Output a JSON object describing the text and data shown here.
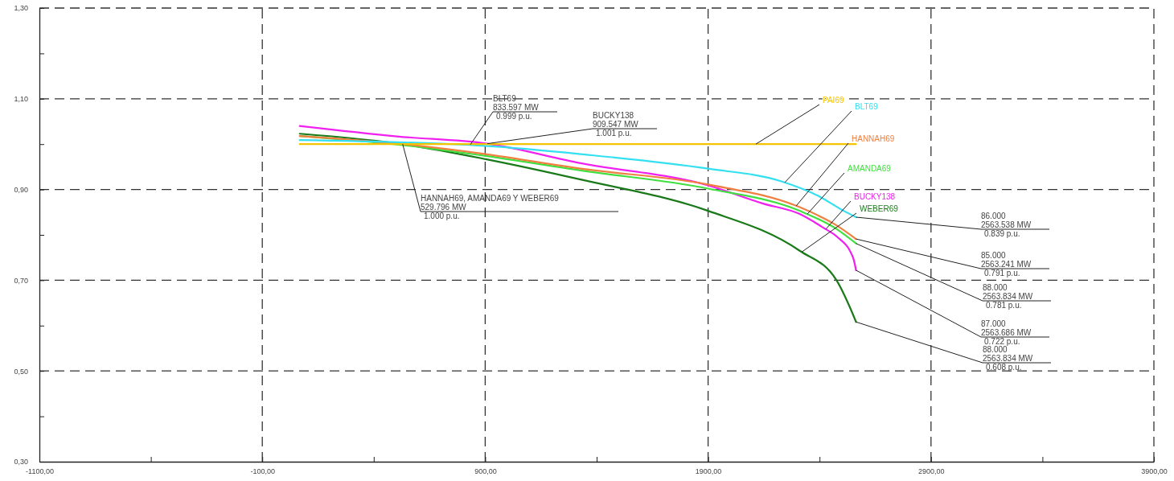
{
  "chart_data": {
    "type": "line",
    "xlim": [
      -1100,
      3900
    ],
    "ylim": [
      0.3,
      1.3
    ],
    "xticks": [
      {
        "value": -1100,
        "label": "-1100,00"
      },
      {
        "value": -600,
        "label": null
      },
      {
        "value": -100,
        "label": "-100,00"
      },
      {
        "value": 400,
        "label": null
      },
      {
        "value": 900,
        "label": "900,00"
      },
      {
        "value": 1400,
        "label": null
      },
      {
        "value": 1900,
        "label": "1900,00"
      },
      {
        "value": 2400,
        "label": null
      },
      {
        "value": 2900,
        "label": "2900,00"
      },
      {
        "value": 3400,
        "label": null
      },
      {
        "value": 3900,
        "label": "3900,00"
      }
    ],
    "yticks": [
      {
        "value": 0.3,
        "label": "0,30"
      },
      {
        "value": 0.4,
        "label": null
      },
      {
        "value": 0.5,
        "label": "0,50"
      },
      {
        "value": 0.6,
        "label": null
      },
      {
        "value": 0.7,
        "label": "0,70"
      },
      {
        "value": 0.8,
        "label": null
      },
      {
        "value": 0.9,
        "label": "0,90"
      },
      {
        "value": 1.0,
        "label": null
      },
      {
        "value": 1.1,
        "label": "1,10"
      },
      {
        "value": 1.2,
        "label": null
      },
      {
        "value": 1.3,
        "label": "1,30"
      }
    ],
    "grid": true,
    "series": [
      {
        "name": "PAI69",
        "color": "#f5c400",
        "x": [
          68,
          2563
        ],
        "values": [
          1.0,
          1.0
        ]
      },
      {
        "name": "BLT69",
        "color": "#33e0f0",
        "x": [
          68,
          902,
          1328,
          1900,
          2229,
          2394,
          2508,
          2563.538
        ],
        "values": [
          1.009,
          0.996,
          0.978,
          0.946,
          0.918,
          0.886,
          0.853,
          0.839
        ]
      },
      {
        "name": "HANNAH69",
        "color": "#f08040",
        "x": [
          68,
          530,
          902,
          1328,
          1900,
          2311,
          2476,
          2563.241
        ],
        "values": [
          1.018,
          1.0,
          0.978,
          0.946,
          0.911,
          0.861,
          0.821,
          0.791
        ]
      },
      {
        "name": "AMANDA69",
        "color": "#40e040",
        "x": [
          68,
          530,
          902,
          1328,
          1900,
          2311,
          2476,
          2563.834
        ],
        "values": [
          1.018,
          0.998,
          0.974,
          0.942,
          0.902,
          0.853,
          0.813,
          0.781
        ]
      },
      {
        "name": "BUCKY138",
        "color": "#f020f0",
        "x": [
          68,
          505,
          909.547,
          1328,
          1900,
          2147,
          2311,
          2426,
          2476,
          2551,
          2563.686
        ],
        "values": [
          1.04,
          1.017,
          1.001,
          0.958,
          0.909,
          0.869,
          0.846,
          0.813,
          0.797,
          0.749,
          0.722
        ]
      },
      {
        "name": "WEBER69",
        "color": "#1a7a1a",
        "x": [
          68,
          529.796,
          902,
          1328,
          1900,
          2311,
          2476,
          2540,
          2563.834
        ],
        "values": [
          1.023,
          1.0,
          0.967,
          0.922,
          0.853,
          0.765,
          0.7,
          0.636,
          0.608
        ]
      }
    ],
    "annotations": [
      {
        "text": "BLT69\n833.597 MW\n0.999 p.u.",
        "x": 833.597,
        "y": 0.999
      },
      {
        "text": "BUCKY138\n909.547 MW\n1.001 p.u.",
        "x": 909.547,
        "y": 1.001
      },
      {
        "text": "HANNAH69, AMANDA69 Y WEBER69\n529.796 MW\n1.000 p.u.",
        "x": 529.796,
        "y": 1.0
      },
      {
        "text": "86.000\n2563.538 MW\n0.839 p.u.",
        "x": 2563.538,
        "y": 0.839
      },
      {
        "text": "85.000\n2563.241 MW\n0.791 p.u.",
        "x": 2563.241,
        "y": 0.791
      },
      {
        "text": "88.000\n2563.834 MW\n0.781 p.u.",
        "x": 2563.834,
        "y": 0.781
      },
      {
        "text": "87.000\n2563.686 MW\n0.722 p.u.",
        "x": 2563.686,
        "y": 0.722
      },
      {
        "text": "88.000\n2563.834 MW\n0.608 p.u.",
        "x": 2563.834,
        "y": 0.608
      }
    ]
  }
}
